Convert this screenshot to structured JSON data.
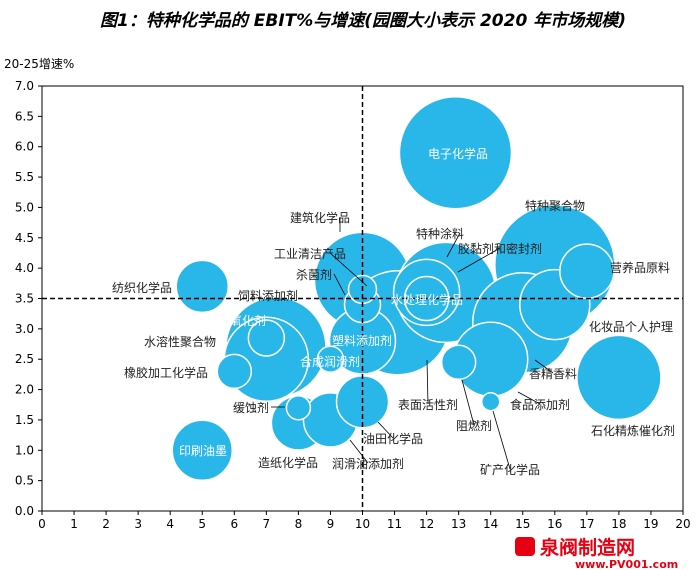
{
  "chart_data": {
    "type": "scatter",
    "title": "图1：特种化学品的 EBIT%与增速(园圈大小表示 2020 年市场规模)",
    "ylabel": "20-25增速%",
    "xlabel": "",
    "xlim": [
      0,
      20
    ],
    "ylim": [
      0,
      7
    ],
    "xticks": [
      "0",
      "1",
      "2",
      "3",
      "4",
      "5",
      "6",
      "7",
      "8",
      "9",
      "10",
      "11",
      "12",
      "13",
      "14",
      "15",
      "16",
      "17",
      "18",
      "19",
      "20"
    ],
    "yticks": [
      "0.0",
      "0.5",
      "1.0",
      "1.5",
      "2.0",
      "2.5",
      "3.0",
      "3.5",
      "4.0",
      "4.5",
      "5.0",
      "5.5",
      "6.0",
      "6.5",
      "7.0"
    ],
    "reference_lines": {
      "x": 10,
      "y": 3.5
    },
    "bubble_color": "#29b6e8",
    "points": [
      {
        "label": "特种聚合物",
        "x": 16.0,
        "y": 4.05,
        "size": 60
      },
      {
        "label": "电子化学品",
        "x": 12.9,
        "y": 5.9,
        "size": 56
      },
      {
        "label": "建筑化学品",
        "x": 10.0,
        "y": 3.8,
        "size": 48
      },
      {
        "label": "表面活性剂",
        "x": 11.1,
        "y": 3.1,
        "size": 52
      },
      {
        "label": "胶黏剂和密封剂",
        "x": 12.6,
        "y": 3.6,
        "size": 50
      },
      {
        "label": "香精香料",
        "x": 15.0,
        "y": 3.1,
        "size": 50
      },
      {
        "label": "饲料添加剂",
        "x": 7.3,
        "y": 2.7,
        "size": 50
      },
      {
        "label": "水溶性聚合物",
        "x": 7.0,
        "y": 2.5,
        "size": 42
      },
      {
        "label": "石化精炼催化剂",
        "x": 18.0,
        "y": 2.2,
        "size": 42
      },
      {
        "label": "食品添加剂",
        "x": 14.0,
        "y": 2.5,
        "size": 37
      },
      {
        "label": "化妆品个人护理",
        "x": 16.0,
        "y": 3.4,
        "size": 35
      },
      {
        "label": "特种涂料",
        "x": 12.0,
        "y": 3.6,
        "size": 33
      },
      {
        "label": "塑料添加剂",
        "x": 10.0,
        "y": 2.8,
        "size": 33
      },
      {
        "label": "印刷油墨",
        "x": 5.0,
        "y": 1.0,
        "size": 30
      },
      {
        "label": "造纸化学品",
        "x": 8.0,
        "y": 1.45,
        "size": 27
      },
      {
        "label": "润滑油添加剂",
        "x": 9.0,
        "y": 1.5,
        "size": 27
      },
      {
        "label": "营养品原料",
        "x": 17.0,
        "y": 3.95,
        "size": 27
      },
      {
        "label": "纺织化学品",
        "x": 5.0,
        "y": 3.7,
        "size": 26
      },
      {
        "label": "油田化学品",
        "x": 10.0,
        "y": 1.8,
        "size": 26
      },
      {
        "label": "水处理化学品",
        "x": 12.0,
        "y": 3.5,
        "size": 22
      },
      {
        "label": "杀菌剂",
        "x": 10.0,
        "y": 3.4,
        "size": 18
      },
      {
        "label": "抗氧化剂",
        "x": 7.0,
        "y": 2.85,
        "size": 18
      },
      {
        "label": "橡胶加工化学品",
        "x": 6.0,
        "y": 2.3,
        "size": 17
      },
      {
        "label": "阻燃剂",
        "x": 13.0,
        "y": 2.45,
        "size": 17
      },
      {
        "label": "工业清洁产品",
        "x": 10.0,
        "y": 3.65,
        "size": 14
      },
      {
        "label": "合成润滑剂",
        "x": 9.0,
        "y": 2.5,
        "size": 13
      },
      {
        "label": "缓蚀剂",
        "x": 8.0,
        "y": 1.7,
        "size": 12
      },
      {
        "label": "矿产化学品",
        "x": 14.0,
        "y": 1.8,
        "size": 9
      }
    ]
  },
  "watermark": {
    "name": "泉阀制造网",
    "url": "www.PV001.com"
  }
}
